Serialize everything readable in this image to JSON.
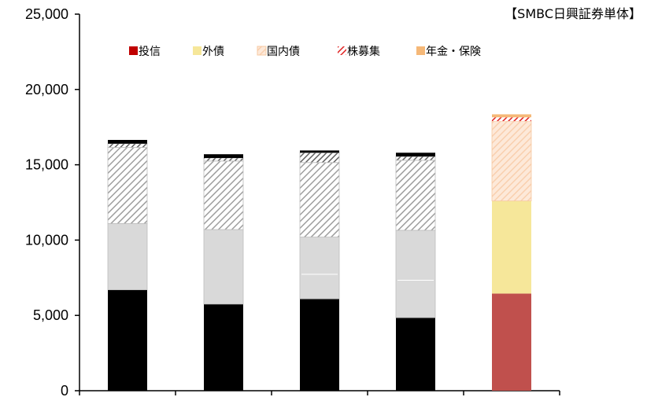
{
  "chart_data": {
    "type": "bar",
    "stacked": true,
    "title": "【SMBC日興証券単体】",
    "categories": [
      "",
      "",
      "",
      "",
      ""
    ],
    "ylim": [
      0,
      25000
    ],
    "yticks": [
      0,
      5000,
      10000,
      15000,
      20000,
      25000
    ],
    "ytick_labels": [
      "0",
      "5,000",
      "10,000",
      "15,000",
      "20,000",
      "25,000"
    ],
    "legend_position": "top",
    "series": [
      {
        "name": "投信",
        "values": [
          6700,
          5750,
          6100,
          4850,
          6450
        ]
      },
      {
        "name": "外債",
        "values": [
          4400,
          4950,
          4100,
          5800,
          6150
        ]
      },
      {
        "name": "国内債",
        "values": [
          5050,
          4550,
          4950,
          4650,
          5300
        ]
      },
      {
        "name": "株募集",
        "values": [
          250,
          200,
          650,
          250,
          250
        ]
      },
      {
        "name": "年金・保険",
        "values": [
          250,
          250,
          150,
          250,
          200
        ]
      }
    ],
    "colors": {
      "historical": [
        "#000000",
        "#d9d9d9",
        "#d9d9d9",
        "#b0b0b0",
        "#000000"
      ],
      "latest": [
        "#c0504d",
        "#f6e79a",
        "#fbe0cc",
        "#e02020",
        "#f5b878"
      ],
      "legend": [
        "#c00000",
        "#f6e79a",
        "#fbd4b4",
        "#e02020",
        "#f5b878"
      ]
    },
    "white_line_in_second_segment": [
      false,
      false,
      true,
      true,
      false
    ]
  }
}
